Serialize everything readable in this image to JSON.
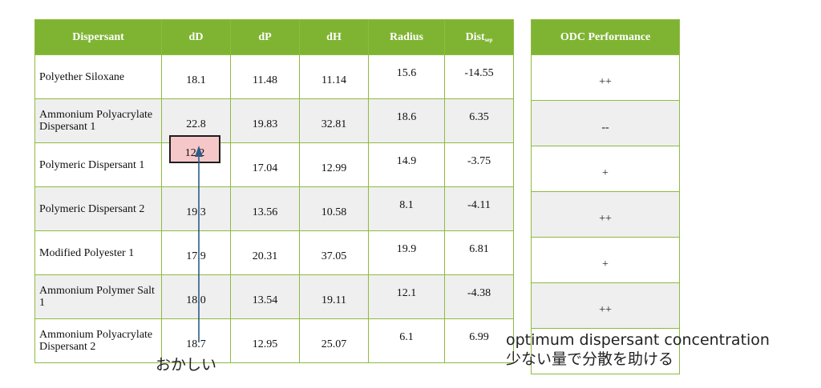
{
  "main_table": {
    "headers": [
      "Dispersant",
      "dD",
      "dP",
      "dH",
      "Radius",
      "Dist"
    ],
    "dist_sub": "sep",
    "rows": [
      {
        "name": "Polyether Siloxane",
        "dD": "18.1",
        "dP": "11.48",
        "dH": "11.14",
        "radius": "15.6",
        "dist": "-14.55"
      },
      {
        "name": "Ammonium Polyacrylate Dispersant 1",
        "dD": "22.8",
        "dP": "19.83",
        "dH": "32.81",
        "radius": "18.6",
        "dist": "6.35"
      },
      {
        "name": "Polymeric Dispersant 1",
        "dD": "12.2",
        "dP": "17.04",
        "dH": "12.99",
        "radius": "14.9",
        "dist": "-3.75"
      },
      {
        "name": "Polymeric Dispersant 2",
        "dD": "19.3",
        "dP": "13.56",
        "dH": "10.58",
        "radius": "8.1",
        "dist": "-4.11"
      },
      {
        "name": "Modified Polyester 1",
        "dD": "17.9",
        "dP": "20.31",
        "dH": "37.05",
        "radius": "19.9",
        "dist": "6.81"
      },
      {
        "name": "Ammonium Polymer Salt 1",
        "dD": "18.0",
        "dP": "13.54",
        "dH": "19.11",
        "radius": "12.1",
        "dist": "-4.38"
      },
      {
        "name": "Ammonium Polyacrylate Dispersant 2",
        "dD": "18.7",
        "dP": "12.95",
        "dH": "25.07",
        "radius": "6.1",
        "dist": "6.99"
      }
    ]
  },
  "odc_table": {
    "header": "ODC Performance",
    "values": [
      "++",
      "--",
      "+",
      "++",
      "+",
      "++",
      "-"
    ]
  },
  "highlight_value": "12.2",
  "annotations": {
    "left_note": "おかしい",
    "right_note_line1": "optimum dispersant concentration",
    "right_note_line2": "少ない量で分散を助ける"
  },
  "colors": {
    "header_green": "#7fb432",
    "border_green": "#8dbb3e",
    "row_alt_gray": "#efefef",
    "highlight_pink": "#f6c7c9",
    "arrow_blue": "#2a5d87"
  }
}
